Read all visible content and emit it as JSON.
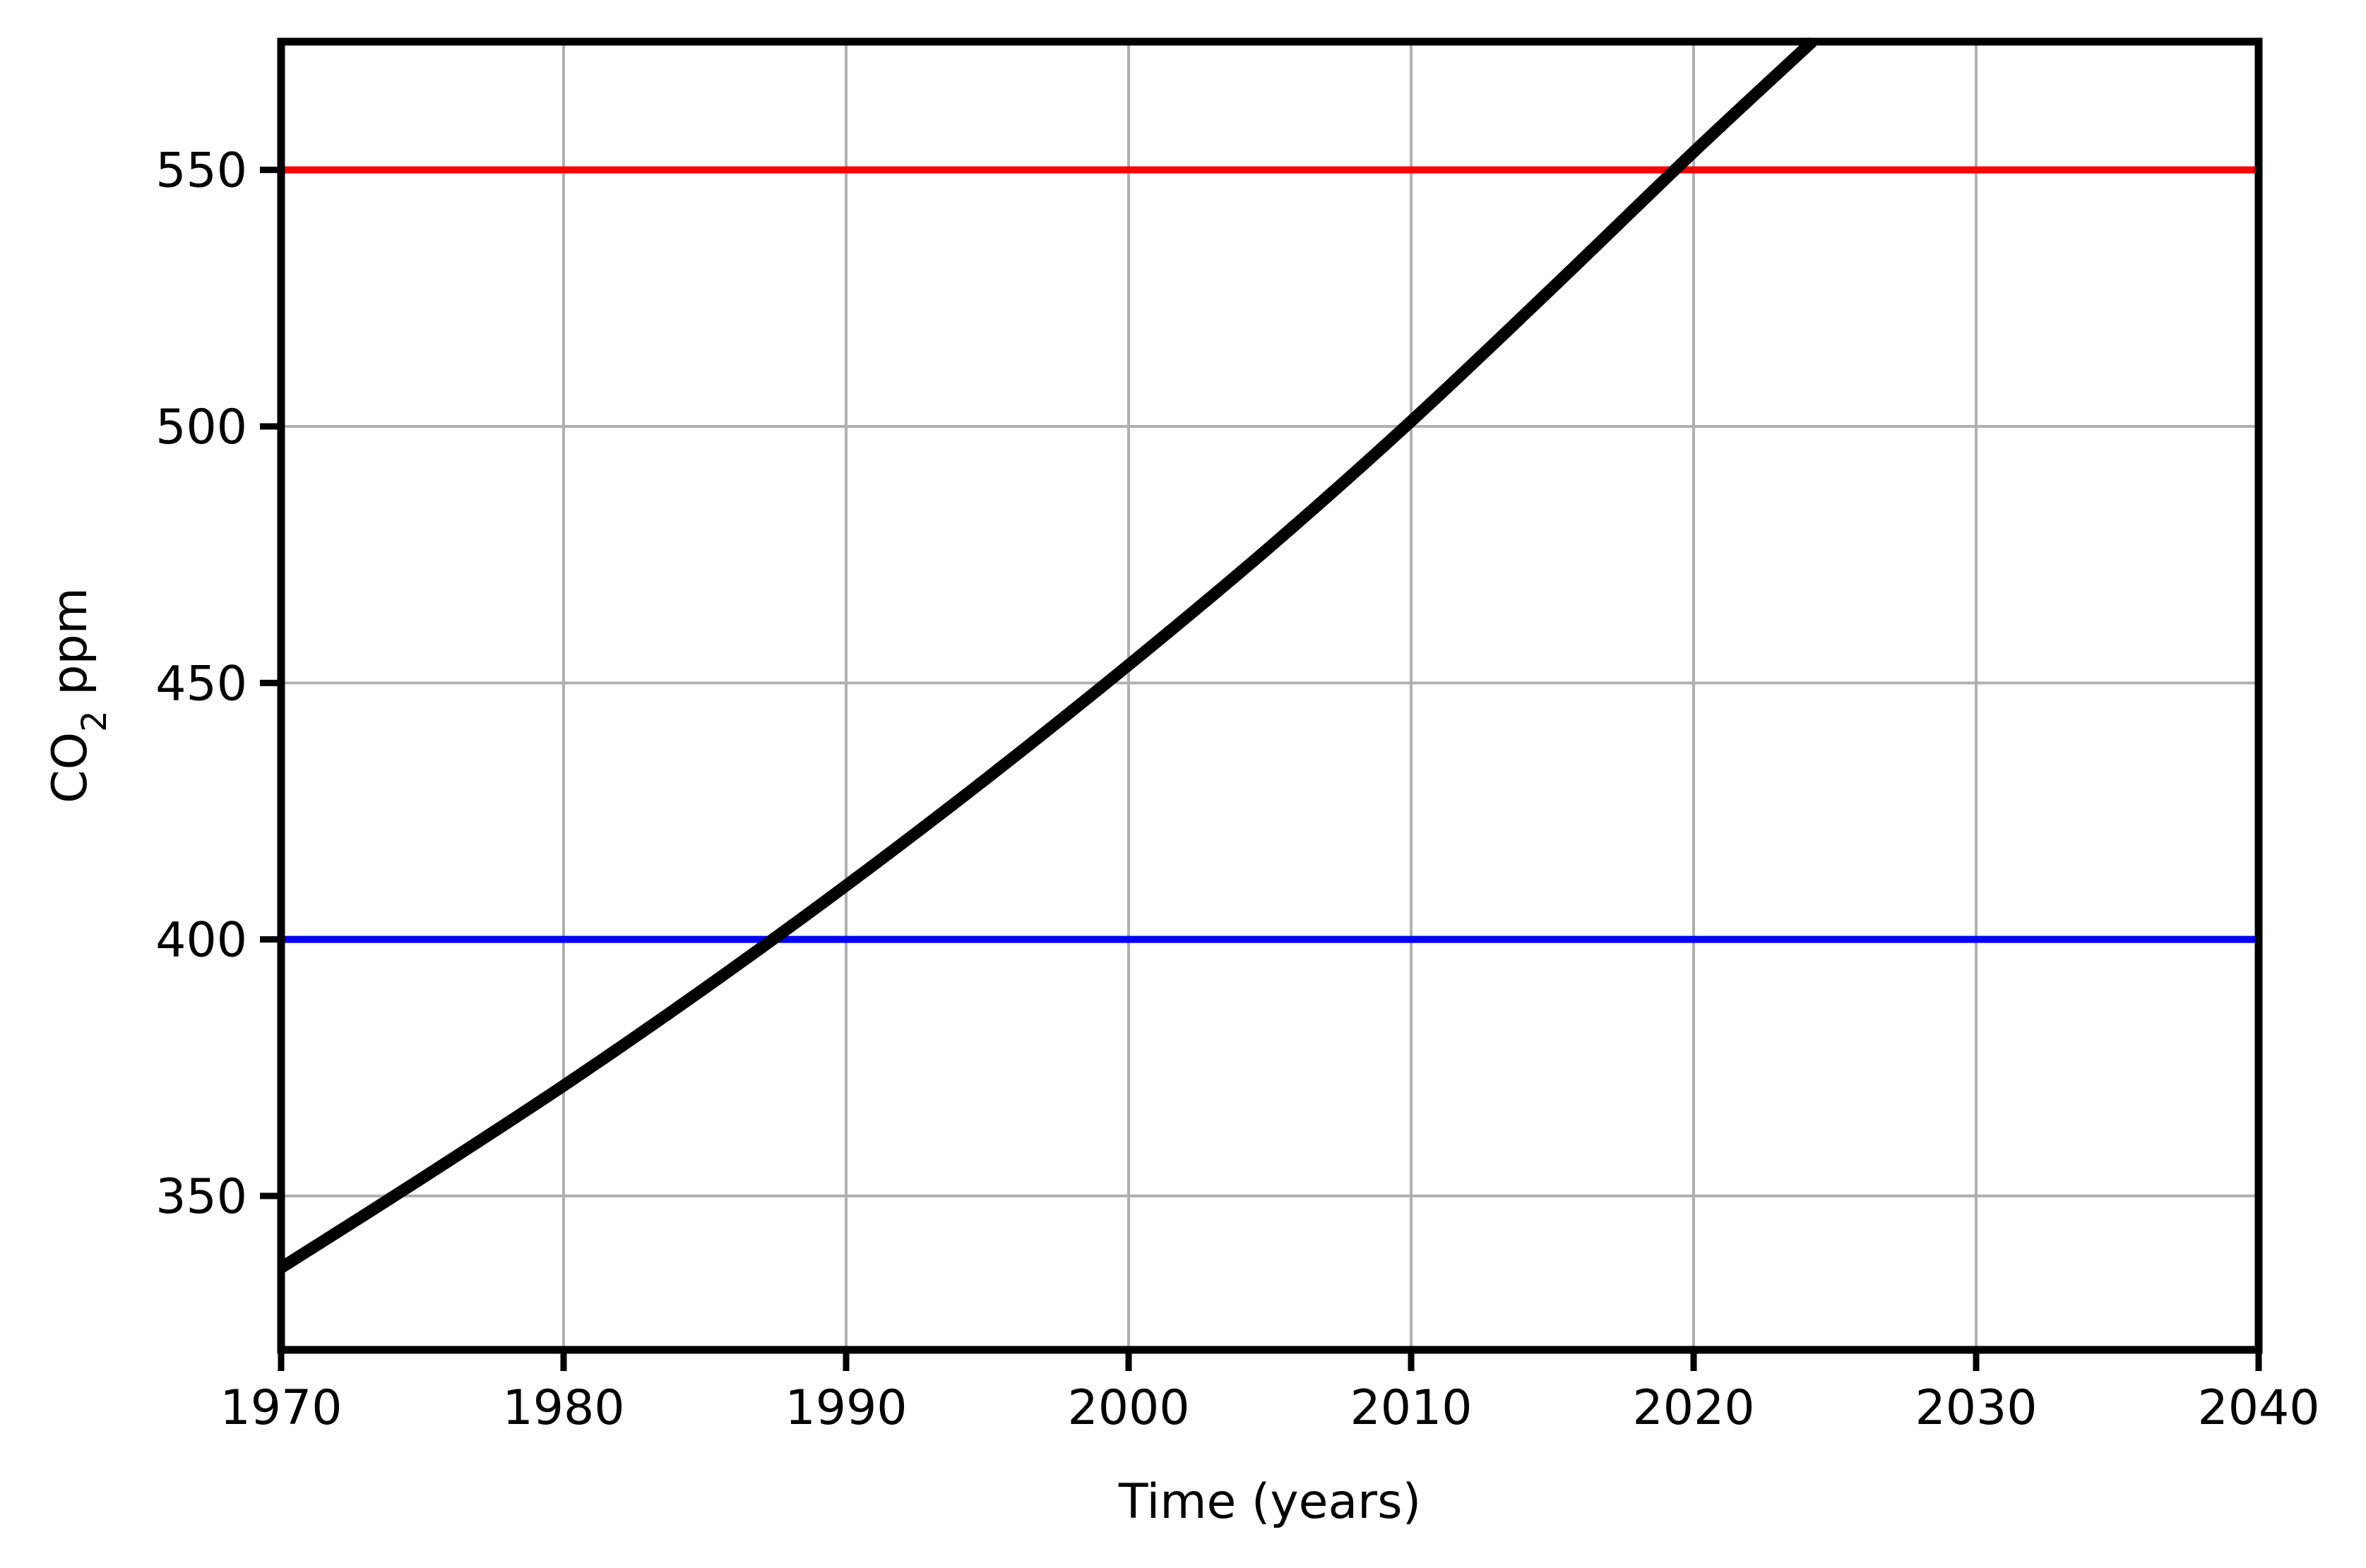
{
  "chart_data": {
    "type": "line",
    "xlabel": "Time (years)",
    "ylabel": {
      "prefix": "CO",
      "subscript": "2",
      "suffix": " ppm"
    },
    "xlim": [
      1970,
      2040
    ],
    "ylim": [
      320,
      575
    ],
    "xticks": [
      1970,
      1980,
      1990,
      2000,
      2010,
      2020,
      2030,
      2040
    ],
    "yticks": [
      350,
      400,
      450,
      500,
      550
    ],
    "grid": true,
    "series": [
      {
        "color": "#000000",
        "x": [
          1970,
          1975,
          1980,
          1985,
          1990,
          1995,
          2000,
          2005,
          2010,
          2015,
          2020,
          2024.2
        ],
        "y": [
          336,
          353.5,
          371.5,
          390.5,
          410.5,
          431.5,
          453.5,
          476.5,
          501,
          527,
          553.5,
          575
        ]
      }
    ],
    "reference_lines": [
      {
        "y": 550,
        "color": "#ff0000"
      },
      {
        "y": 400,
        "color": "#0000ff"
      }
    ]
  }
}
